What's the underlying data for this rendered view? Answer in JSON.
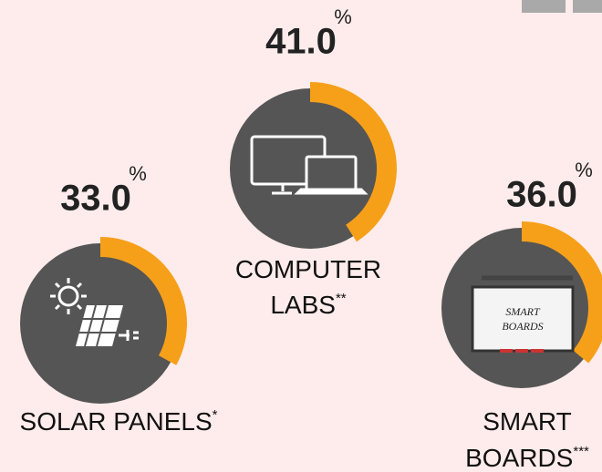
{
  "chart_data": [
    {
      "type": "gauge",
      "values": [
        33
      ],
      "value_labels": [
        "33.0"
      ],
      "unit": "%",
      "ylim": [
        0,
        100
      ],
      "color": "#f6a01a",
      "label": [
        "SOLAR PANELS"
      ],
      "footnote": "*"
    },
    {
      "type": "gauge",
      "values": [
        41
      ],
      "value_labels": [
        "41.0"
      ],
      "unit": "%",
      "ylim": [
        0,
        100
      ],
      "color": "#f6a01a",
      "label": [
        "COMPUTER",
        "LABS"
      ],
      "footnote": "**"
    },
    {
      "type": "gauge",
      "values": [
        36
      ],
      "value_labels": [
        "36.0"
      ],
      "unit": "%",
      "ylim": [
        0,
        100
      ],
      "color": "#f6a01a",
      "label": [
        "SMART",
        "BOARDS"
      ],
      "footnote": "***",
      "icon_text": [
        "SMART",
        "BOARDS"
      ]
    }
  ]
}
